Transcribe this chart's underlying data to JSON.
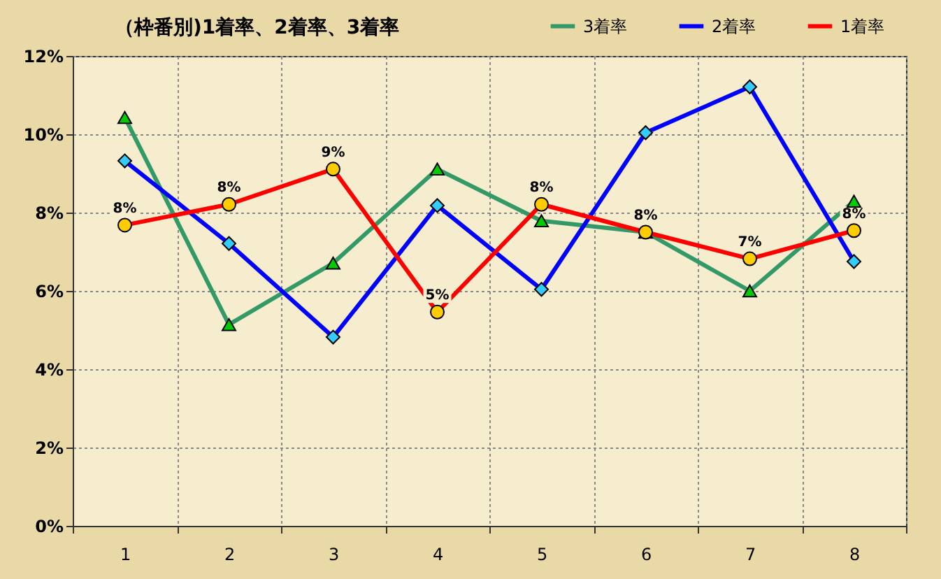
{
  "chart_data": {
    "type": "line",
    "title": "（枠番別)1着率、2着率、3着率",
    "categories": [
      "1",
      "2",
      "3",
      "4",
      "5",
      "6",
      "7",
      "8"
    ],
    "series": [
      {
        "name": "3着率",
        "color": "#339966",
        "marker": "triangle",
        "values": [
          10.43,
          5.14,
          6.71,
          9.11,
          7.79,
          7.5,
          6.0,
          8.29
        ]
      },
      {
        "name": "2着率",
        "color": "#0000ff",
        "marker": "diamond",
        "values": [
          9.32,
          7.21,
          4.82,
          8.18,
          6.04,
          10.04,
          11.21,
          6.75
        ]
      },
      {
        "name": "1着率",
        "color": "#ff0000",
        "marker": "circle",
        "values": [
          7.68,
          8.21,
          9.11,
          5.46,
          8.21,
          7.5,
          6.82,
          7.54
        ],
        "value_labels": [
          "8%",
          "8%",
          "9%",
          "5%",
          "8%",
          "8%",
          "7%",
          "8%"
        ]
      }
    ],
    "ylim": [
      0,
      12
    ],
    "yticks": [
      {
        "value": 0,
        "label": "0%"
      },
      {
        "value": 2,
        "label": "2%"
      },
      {
        "value": 4,
        "label": "4%"
      },
      {
        "value": 6,
        "label": "6%"
      },
      {
        "value": 8,
        "label": "8%"
      },
      {
        "value": 10,
        "label": "10%"
      },
      {
        "value": 12,
        "label": "12%"
      }
    ],
    "grid": true,
    "legend": "top right",
    "line_style": "solid"
  }
}
